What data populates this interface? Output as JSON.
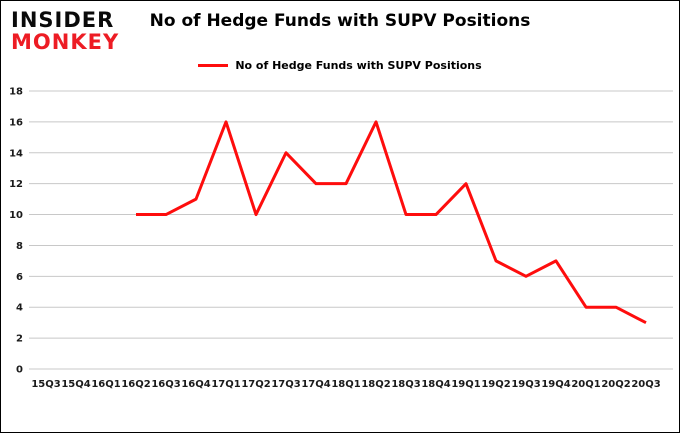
{
  "logo": {
    "line1": "INSIDER",
    "line2": "MONKEY",
    "line1_color": "#0a0a0a",
    "line2_color": "#ed1c24"
  },
  "header": {
    "title": "No of Hedge Funds with SUPV Positions"
  },
  "legend": {
    "label": "No of Hedge Funds with SUPV Positions",
    "line_color": "#fe0d0d"
  },
  "chart_data": {
    "type": "line",
    "title": "No of Hedge Funds with SUPV Positions",
    "legend": "No of Hedge Funds with SUPV Positions",
    "categories": [
      "15Q3",
      "15Q4",
      "16Q1",
      "16Q2",
      "16Q3",
      "16Q4",
      "17Q1",
      "17Q2",
      "17Q3",
      "17Q4",
      "18Q1",
      "18Q2",
      "18Q3",
      "18Q4",
      "19Q1",
      "19Q2",
      "19Q3",
      "19Q4",
      "20Q1",
      "20Q2",
      "20Q3"
    ],
    "values": [
      null,
      null,
      null,
      10,
      10,
      11,
      16,
      10,
      14,
      12,
      12,
      16,
      10,
      10,
      12,
      7,
      6,
      7,
      4,
      4,
      3
    ],
    "xlabel": "",
    "ylabel": "",
    "ylim": [
      0,
      18
    ],
    "ytick_step": 2,
    "yticks": [
      0,
      2,
      4,
      6,
      8,
      10,
      12,
      14,
      16,
      18
    ],
    "line_color": "#fe0d0d",
    "grid": true,
    "grid_color": "#c8c8c8",
    "legend_position": "top-center"
  }
}
